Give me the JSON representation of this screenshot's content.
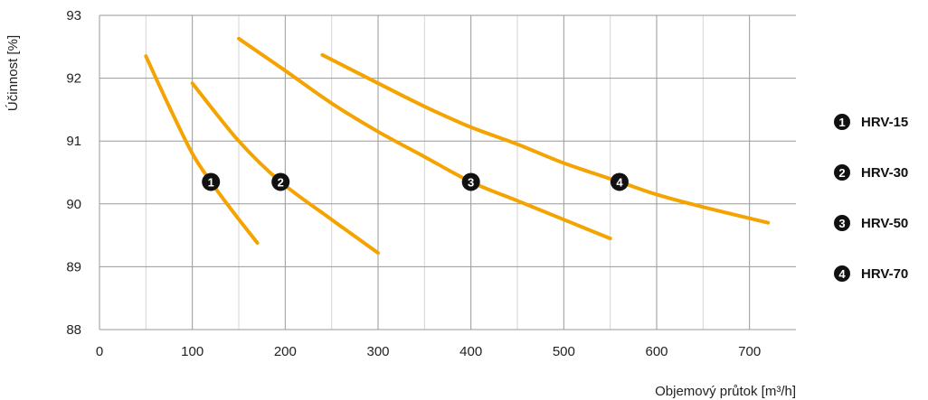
{
  "chart_data": {
    "type": "line",
    "title": "",
    "xlabel": "Objemový průtok [m³/h]",
    "ylabel": "Účinnost [%]",
    "xlim": [
      0,
      750
    ],
    "ylim": [
      88,
      93
    ],
    "xticks": [
      0,
      100,
      200,
      300,
      400,
      500,
      600,
      700
    ],
    "yticks": [
      88,
      89,
      90,
      91,
      92,
      93
    ],
    "x_minor_gridlines": [
      50,
      150,
      250,
      350,
      450,
      550,
      650
    ],
    "grid": true,
    "line_color": "#F5A300",
    "marker_color": "#111111",
    "legend_position": "right",
    "series": [
      {
        "name": "HRV-15",
        "marker": "1",
        "points": [
          [
            50,
            92.35
          ],
          [
            75,
            91.55
          ],
          [
            100,
            90.8
          ],
          [
            120,
            90.35
          ],
          [
            145,
            89.85
          ],
          [
            170,
            89.38
          ]
        ],
        "marker_point": [
          120,
          90.35
        ]
      },
      {
        "name": "HRV-30",
        "marker": "2",
        "points": [
          [
            100,
            91.92
          ],
          [
            150,
            91.0
          ],
          [
            195,
            90.35
          ],
          [
            250,
            89.75
          ],
          [
            300,
            89.22
          ]
        ],
        "marker_point": [
          195,
          90.35
        ]
      },
      {
        "name": "HRV-50",
        "marker": "3",
        "points": [
          [
            150,
            92.63
          ],
          [
            200,
            92.12
          ],
          [
            250,
            91.6
          ],
          [
            300,
            91.15
          ],
          [
            350,
            90.75
          ],
          [
            400,
            90.35
          ],
          [
            450,
            90.05
          ],
          [
            500,
            89.75
          ],
          [
            550,
            89.45
          ]
        ],
        "marker_point": [
          400,
          90.35
        ]
      },
      {
        "name": "HRV-70",
        "marker": "4",
        "points": [
          [
            240,
            92.37
          ],
          [
            300,
            91.92
          ],
          [
            350,
            91.55
          ],
          [
            400,
            91.22
          ],
          [
            450,
            90.95
          ],
          [
            500,
            90.65
          ],
          [
            560,
            90.35
          ],
          [
            600,
            90.15
          ],
          [
            650,
            89.95
          ],
          [
            720,
            89.7
          ]
        ],
        "marker_point": [
          560,
          90.35
        ]
      }
    ]
  }
}
